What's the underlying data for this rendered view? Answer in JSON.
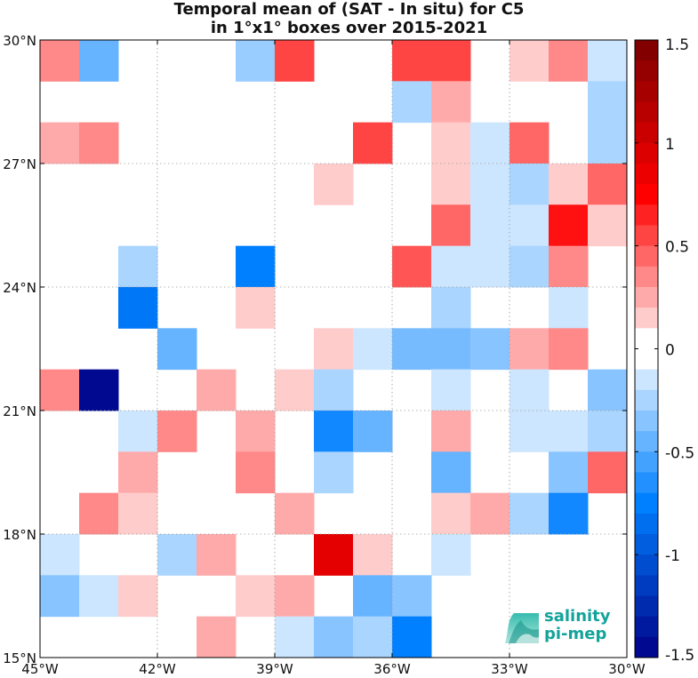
{
  "chart_data": {
    "type": "heatmap",
    "title": "Temporal mean of (SAT - In situ) for C5",
    "subtitle": "in 1°x1° boxes over 2015-2021",
    "x_ticks": [
      -45,
      -42,
      -39,
      -36,
      -33,
      -30
    ],
    "x_tick_labels": [
      "45°W",
      "42°W",
      "39°W",
      "36°W",
      "33°W",
      "30°W"
    ],
    "y_ticks": [
      15,
      18,
      21,
      24,
      27,
      30
    ],
    "y_tick_labels": [
      "15°N",
      "18°N",
      "21°N",
      "24°N",
      "27°N",
      "30°N"
    ],
    "xlim": [
      -45,
      -30
    ],
    "ylim": [
      15,
      30
    ],
    "grid": true,
    "colorbar": {
      "range": [
        -1.5,
        1.5
      ],
      "tick_values": [
        1.5,
        1,
        0.5,
        0,
        -0.5,
        -1,
        -1.5
      ],
      "tick_labels": [
        "1.5",
        "1",
        "0.5",
        "0",
        "-0.5",
        "-1",
        "-1.5"
      ]
    },
    "cells": [
      {
        "lon": -45,
        "lat": 29,
        "value": 0.35
      },
      {
        "lon": -44,
        "lat": 29,
        "value": -0.45
      },
      {
        "lon": -40,
        "lat": 29,
        "value": -0.3
      },
      {
        "lon": -39,
        "lat": 29,
        "value": 0.55
      },
      {
        "lon": -36,
        "lat": 29,
        "value": 0.55
      },
      {
        "lon": -35,
        "lat": 29,
        "value": 0.55
      },
      {
        "lon": -33,
        "lat": 29,
        "value": 0.15
      },
      {
        "lon": -32,
        "lat": 29,
        "value": 0.35
      },
      {
        "lon": -31,
        "lat": 29,
        "value": -0.15
      },
      {
        "lon": -36,
        "lat": 28,
        "value": -0.25
      },
      {
        "lon": -35,
        "lat": 28,
        "value": 0.25
      },
      {
        "lon": -31,
        "lat": 28,
        "value": -0.25
      },
      {
        "lon": -45,
        "lat": 27,
        "value": 0.25
      },
      {
        "lon": -44,
        "lat": 27,
        "value": 0.35
      },
      {
        "lon": -37,
        "lat": 27,
        "value": 0.55
      },
      {
        "lon": -35,
        "lat": 27,
        "value": 0.15
      },
      {
        "lon": -34,
        "lat": 27,
        "value": -0.15
      },
      {
        "lon": -33,
        "lat": 27,
        "value": 0.45
      },
      {
        "lon": -31,
        "lat": 27,
        "value": -0.25
      },
      {
        "lon": -38,
        "lat": 26,
        "value": 0.15
      },
      {
        "lon": -35,
        "lat": 26,
        "value": 0.15
      },
      {
        "lon": -34,
        "lat": 26,
        "value": -0.15
      },
      {
        "lon": -33,
        "lat": 26,
        "value": -0.25
      },
      {
        "lon": -32,
        "lat": 26,
        "value": 0.15
      },
      {
        "lon": -31,
        "lat": 26,
        "value": 0.45
      },
      {
        "lon": -35,
        "lat": 25,
        "value": 0.45
      },
      {
        "lon": -34,
        "lat": 25,
        "value": -0.15
      },
      {
        "lon": -33,
        "lat": 25,
        "value": -0.15
      },
      {
        "lon": -32,
        "lat": 25,
        "value": 0.7
      },
      {
        "lon": -31,
        "lat": 25,
        "value": 0.15
      },
      {
        "lon": -43,
        "lat": 24,
        "value": -0.25
      },
      {
        "lon": -40,
        "lat": 24,
        "value": -0.75
      },
      {
        "lon": -36,
        "lat": 24,
        "value": 0.5
      },
      {
        "lon": -35,
        "lat": 24,
        "value": -0.15
      },
      {
        "lon": -34,
        "lat": 24,
        "value": -0.15
      },
      {
        "lon": -33,
        "lat": 24,
        "value": -0.25
      },
      {
        "lon": -32,
        "lat": 24,
        "value": 0.35
      },
      {
        "lon": -43,
        "lat": 23,
        "value": -0.8
      },
      {
        "lon": -40,
        "lat": 23,
        "value": 0.15
      },
      {
        "lon": -35,
        "lat": 23,
        "value": -0.25
      },
      {
        "lon": -32,
        "lat": 23,
        "value": -0.15
      },
      {
        "lon": -42,
        "lat": 22,
        "value": -0.45
      },
      {
        "lon": -38,
        "lat": 22,
        "value": 0.15
      },
      {
        "lon": -37,
        "lat": 22,
        "value": -0.15
      },
      {
        "lon": -36,
        "lat": 22,
        "value": -0.4
      },
      {
        "lon": -35,
        "lat": 22,
        "value": -0.4
      },
      {
        "lon": -34,
        "lat": 22,
        "value": -0.35
      },
      {
        "lon": -33,
        "lat": 22,
        "value": 0.25
      },
      {
        "lon": -32,
        "lat": 22,
        "value": 0.35
      },
      {
        "lon": -45,
        "lat": 21,
        "value": 0.35
      },
      {
        "lon": -44,
        "lat": 21,
        "value": -1.45
      },
      {
        "lon": -41,
        "lat": 21,
        "value": 0.25
      },
      {
        "lon": -39,
        "lat": 21,
        "value": 0.15
      },
      {
        "lon": -38,
        "lat": 21,
        "value": -0.25
      },
      {
        "lon": -35,
        "lat": 21,
        "value": -0.15
      },
      {
        "lon": -33,
        "lat": 21,
        "value": -0.15
      },
      {
        "lon": -31,
        "lat": 21,
        "value": -0.35
      },
      {
        "lon": -43,
        "lat": 20,
        "value": -0.15
      },
      {
        "lon": -42,
        "lat": 20,
        "value": 0.35
      },
      {
        "lon": -40,
        "lat": 20,
        "value": 0.25
      },
      {
        "lon": -38,
        "lat": 20,
        "value": -0.7
      },
      {
        "lon": -37,
        "lat": 20,
        "value": -0.45
      },
      {
        "lon": -35,
        "lat": 20,
        "value": 0.25
      },
      {
        "lon": -33,
        "lat": 20,
        "value": -0.15
      },
      {
        "lon": -32,
        "lat": 20,
        "value": -0.15
      },
      {
        "lon": -31,
        "lat": 20,
        "value": -0.25
      },
      {
        "lon": -43,
        "lat": 19,
        "value": 0.25
      },
      {
        "lon": -40,
        "lat": 19,
        "value": 0.35
      },
      {
        "lon": -38,
        "lat": 19,
        "value": -0.25
      },
      {
        "lon": -35,
        "lat": 19,
        "value": -0.45
      },
      {
        "lon": -32,
        "lat": 19,
        "value": -0.35
      },
      {
        "lon": -31,
        "lat": 19,
        "value": 0.45
      },
      {
        "lon": -44,
        "lat": 18,
        "value": 0.35
      },
      {
        "lon": -43,
        "lat": 18,
        "value": 0.15
      },
      {
        "lon": -39,
        "lat": 18,
        "value": 0.25
      },
      {
        "lon": -35,
        "lat": 18,
        "value": 0.15
      },
      {
        "lon": -34,
        "lat": 18,
        "value": 0.25
      },
      {
        "lon": -33,
        "lat": 18,
        "value": -0.25
      },
      {
        "lon": -32,
        "lat": 18,
        "value": -0.7
      },
      {
        "lon": -45,
        "lat": 17,
        "value": -0.15
      },
      {
        "lon": -42,
        "lat": 17,
        "value": -0.25
      },
      {
        "lon": -41,
        "lat": 17,
        "value": 0.25
      },
      {
        "lon": -38,
        "lat": 17,
        "value": 0.9
      },
      {
        "lon": -37,
        "lat": 17,
        "value": 0.15
      },
      {
        "lon": -35,
        "lat": 17,
        "value": -0.15
      },
      {
        "lon": -45,
        "lat": 16,
        "value": -0.35
      },
      {
        "lon": -44,
        "lat": 16,
        "value": -0.15
      },
      {
        "lon": -43,
        "lat": 16,
        "value": 0.15
      },
      {
        "lon": -40,
        "lat": 16,
        "value": 0.15
      },
      {
        "lon": -39,
        "lat": 16,
        "value": 0.25
      },
      {
        "lon": -37,
        "lat": 16,
        "value": -0.45
      },
      {
        "lon": -36,
        "lat": 16,
        "value": -0.35
      },
      {
        "lon": -41,
        "lat": 15,
        "value": 0.25
      },
      {
        "lon": -39,
        "lat": 15,
        "value": -0.15
      },
      {
        "lon": -38,
        "lat": 15,
        "value": -0.35
      },
      {
        "lon": -37,
        "lat": 15,
        "value": -0.25
      },
      {
        "lon": -36,
        "lat": 15,
        "value": -0.75
      }
    ]
  },
  "logo": {
    "line1": "salinity",
    "line2": "pi-mep",
    "color": "#12a39a"
  }
}
